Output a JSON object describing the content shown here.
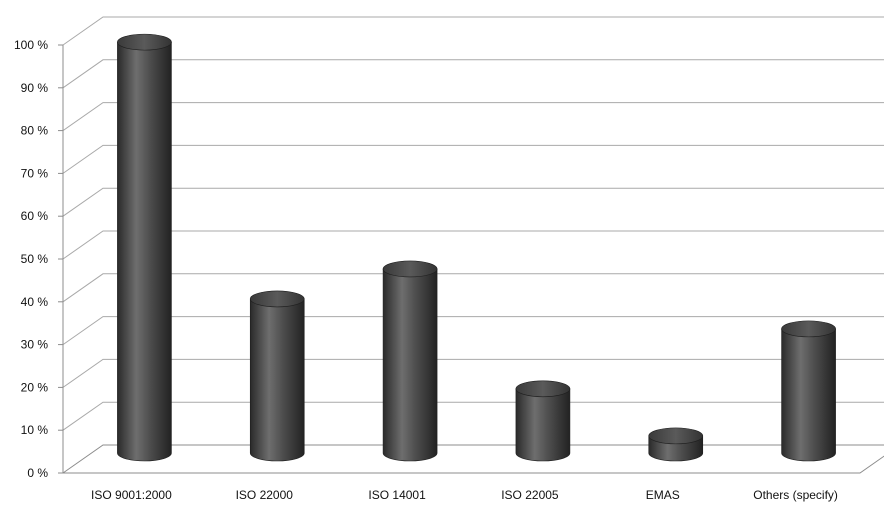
{
  "chart_data": {
    "type": "bar",
    "style": "3d-cylinder",
    "categories": [
      "ISO 9001:2000",
      "ISO 22000",
      "ISO 14001",
      "ISO 22005",
      "EMAS",
      "Others (specify)"
    ],
    "values": [
      96,
      36,
      43,
      15,
      4,
      29
    ],
    "y_tick_labels": [
      "0 %",
      "10 %",
      "20 %",
      "30 %",
      "40 %",
      "50 %",
      "60 %",
      "70 %",
      "80 %",
      "90 %",
      "100 %"
    ],
    "ylim": [
      0,
      100
    ],
    "grid": true,
    "legend": "none",
    "title": "",
    "xlabel": "",
    "ylabel": "",
    "colors": {
      "bar": "#4f4f4f",
      "bar_dark": "#262626",
      "bar_light": "#8a8a8a",
      "grid": "#a9a9a9"
    }
  }
}
